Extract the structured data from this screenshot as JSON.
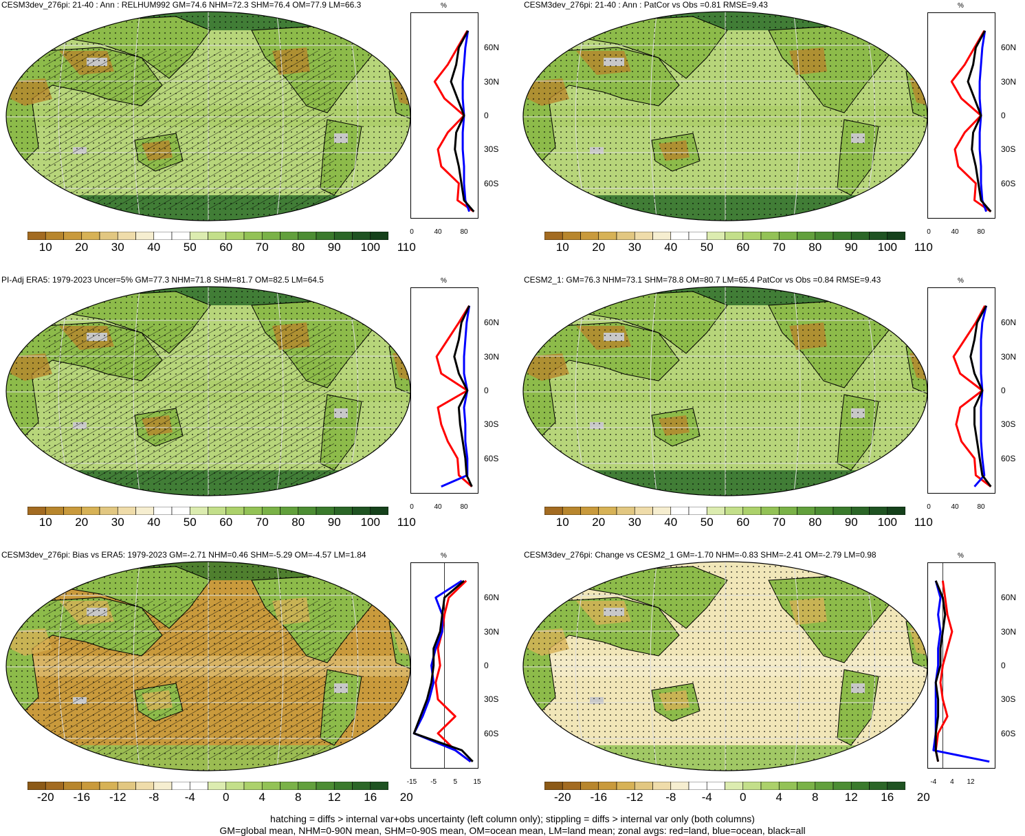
{
  "colors": {
    "land_dry": "#b6862c",
    "tan": "#e2c98a",
    "pale": "#f1e6b8",
    "green_light": "#b7d57a",
    "green_mid": "#8dbb4a",
    "green_dark": "#2d6d2a",
    "gray": "#c8c8c8",
    "line_red": "#ff0000",
    "line_blue": "#0000ff",
    "line_black": "#000000"
  },
  "panels": [
    {
      "title": "CESM3dev_276pi: 21-40 : Ann : RELHUM992 GM=74.6 NHM=72.3 SHM=76.4 OM=77.9 LM=66.3",
      "cbar_labels": [
        "10",
        "20",
        "30",
        "40",
        "50",
        "60",
        "70",
        "80",
        "90",
        "100",
        "110"
      ],
      "unit": "%",
      "lat_labels": [
        "60N",
        "30N",
        "0",
        "30S",
        "60S"
      ],
      "x_ticks": [
        "0",
        "40",
        "80"
      ],
      "hatched": true
    },
    {
      "title": "CESM3dev_276pi: 21-40 : Ann : PatCor vs Obs =0.81 RMSE=9.43",
      "cbar_labels": [
        "10",
        "20",
        "30",
        "40",
        "50",
        "60",
        "70",
        "80",
        "90",
        "100",
        "110"
      ],
      "unit": "%",
      "lat_labels": [
        "60N",
        "30N",
        "0",
        "30S",
        "60S"
      ],
      "x_ticks": [
        "0",
        "40",
        "80"
      ],
      "hatched": false
    },
    {
      "title": "PI-Adj ERA5: 1979-2023 Uncer=5% GM=77.3 NHM=71.8 SHM=81.7 OM=82.5 LM=64.5",
      "cbar_labels": [
        "10",
        "20",
        "30",
        "40",
        "50",
        "60",
        "70",
        "80",
        "90",
        "100",
        "110"
      ],
      "unit": "%",
      "lat_labels": [
        "60N",
        "30N",
        "0",
        "30S",
        "60S"
      ],
      "x_ticks": [
        "0",
        "40",
        "80"
      ],
      "hatched": true
    },
    {
      "title": "CESM2_1: GM=76.3 NHM=73.1 SHM=78.8 OM=80.7 LM=65.4 PatCor vs Obs =0.84 RMSE=9.43",
      "cbar_labels": [
        "10",
        "20",
        "30",
        "40",
        "50",
        "60",
        "70",
        "80",
        "90",
        "100",
        "110"
      ],
      "unit": "%",
      "lat_labels": [
        "60N",
        "30N",
        "0",
        "30S",
        "60S"
      ],
      "x_ticks": [
        "0",
        "40",
        "80"
      ],
      "hatched": false
    },
    {
      "title": "CESM3dev_276pi: Bias vs ERA5: 1979-2023 GM=-2.71 NHM=0.46 SHM=-5.29 OM=-4.57 LM=1.84",
      "cbar_labels": [
        "-20",
        "-16",
        "-12",
        "-8",
        "-4",
        "0",
        "4",
        "8",
        "12",
        "16",
        "20"
      ],
      "unit": "%",
      "lat_labels": [
        "60N",
        "30N",
        "0",
        "30S",
        "60S"
      ],
      "x_ticks": [
        "-15",
        "-5",
        "5",
        "15"
      ],
      "hatched": true
    },
    {
      "title": "CESM3dev_276pi: Change vs CESM2_1 GM=-1.70 NHM=-0.83 SHM=-2.41 OM=-2.79 LM=0.98",
      "cbar_labels": [
        "-20",
        "-16",
        "-12",
        "-8",
        "-4",
        "0",
        "4",
        "8",
        "12",
        "16",
        "20"
      ],
      "unit": "%",
      "lat_labels": [
        "60N",
        "30N",
        "0",
        "30S",
        "60S"
      ],
      "x_ticks": [
        "-4",
        "4",
        "12"
      ],
      "hatched": false
    }
  ],
  "footer": {
    "line1": "hatching = diffs > internal var+obs uncertainty (left column only); stippling = diffs > internal var only (both columns)",
    "line2": "GM=global mean, NHM=0-90N mean, SHM=0-90S mean, OM=ocean mean, LM=land mean; zonal avgs: red=land, blue=ocean, black=all"
  },
  "chart_data": [
    {
      "type": "line",
      "title": "CESM3dev_276pi: 21-40 : Ann : RELHUM992 GM=74.6 NHM=72.3 SHM=76.4 OM=77.9 LM=66.3",
      "xlabel": "%",
      "ylabel": "",
      "xlim": [
        0,
        100
      ],
      "ylim": [
        -90,
        90
      ],
      "y": [
        -85,
        -75,
        -60,
        -45,
        -30,
        -15,
        0,
        15,
        30,
        45,
        60,
        75
      ],
      "series": [
        {
          "values": [
            95,
            70,
            72,
            45,
            40,
            55,
            80,
            50,
            35,
            55,
            70,
            85
          ]
        },
        {
          "values": [
            88,
            82,
            80,
            80,
            78,
            78,
            80,
            78,
            78,
            80,
            82,
            86
          ]
        },
        {
          "values": [
            95,
            80,
            76,
            72,
            66,
            68,
            80,
            70,
            60,
            68,
            72,
            86
          ]
        }
      ]
    },
    {
      "type": "line",
      "title": "CESM3dev_276pi: 21-40 : Ann : PatCor vs Obs =0.81 RMSE=9.43",
      "xlabel": "%",
      "ylabel": "",
      "xlim": [
        0,
        100
      ],
      "ylim": [
        -90,
        90
      ],
      "y": [
        -85,
        -75,
        -60,
        -45,
        -30,
        -15,
        0,
        15,
        30,
        45,
        60,
        75
      ],
      "series": [
        {
          "values": [
            95,
            70,
            72,
            45,
            40,
            55,
            80,
            50,
            35,
            55,
            70,
            85
          ]
        },
        {
          "values": [
            88,
            82,
            80,
            80,
            78,
            78,
            80,
            78,
            78,
            80,
            82,
            86
          ]
        },
        {
          "values": [
            95,
            80,
            76,
            72,
            66,
            68,
            80,
            70,
            60,
            68,
            72,
            86
          ]
        }
      ]
    },
    {
      "type": "line",
      "title": "PI-Adj ERA5: 1979-2023 Uncer=5% GM=77.3 NHM=71.8 SHM=81.7 OM=82.5 LM=64.5",
      "xlabel": "%",
      "ylabel": "",
      "xlim": [
        0,
        100
      ],
      "ylim": [
        -90,
        90
      ],
      "y": [
        -85,
        -75,
        -60,
        -45,
        -30,
        -15,
        0,
        15,
        30,
        45,
        60,
        75
      ],
      "series": [
        {
          "values": [
            92,
            72,
            70,
            55,
            45,
            40,
            85,
            45,
            38,
            55,
            72,
            88
          ]
        },
        {
          "values": [
            45,
            85,
            85,
            82,
            82,
            80,
            85,
            80,
            80,
            82,
            84,
            88
          ]
        },
        {
          "values": [
            92,
            84,
            82,
            78,
            74,
            72,
            85,
            72,
            65,
            72,
            76,
            88
          ]
        }
      ]
    },
    {
      "type": "line",
      "title": "CESM2_1: GM=76.3 NHM=73.1 SHM=78.8 OM=80.7 LM=65.4 PatCor vs Obs =0.84 RMSE=9.43",
      "xlabel": "%",
      "ylabel": "",
      "xlim": [
        0,
        100
      ],
      "ylim": [
        -90,
        90
      ],
      "y": [
        -85,
        -75,
        -60,
        -45,
        -30,
        -15,
        0,
        15,
        30,
        45,
        60,
        75
      ],
      "series": [
        {
          "values": [
            95,
            72,
            70,
            50,
            42,
            48,
            82,
            48,
            38,
            55,
            72,
            86
          ]
        },
        {
          "values": [
            70,
            85,
            82,
            80,
            80,
            80,
            82,
            80,
            80,
            80,
            82,
            88
          ]
        },
        {
          "values": [
            95,
            82,
            78,
            74,
            70,
            70,
            82,
            70,
            64,
            70,
            74,
            88
          ]
        }
      ]
    },
    {
      "type": "line",
      "title": "CESM3dev_276pi: Bias vs ERA5: 1979-2023 GM=-2.71 NHM=0.46 SHM=-5.29 OM=-4.57 LM=1.84",
      "xlabel": "%",
      "ylabel": "",
      "xlim": [
        -15,
        15
      ],
      "ylim": [
        -90,
        90
      ],
      "y": [
        -85,
        -75,
        -60,
        -45,
        -30,
        -15,
        0,
        15,
        30,
        45,
        60,
        75
      ],
      "series": [
        {
          "values": [
            12,
            5,
            -3,
            5,
            -3,
            -4,
            -2,
            -3,
            -1,
            0,
            2,
            10
          ]
        },
        {
          "values": [
            12,
            5,
            -14,
            -10,
            -7,
            -5,
            -6,
            -4,
            -1,
            -1,
            -4,
            8
          ]
        },
        {
          "values": [
            13,
            8,
            -14,
            -11,
            -8,
            -6,
            -5,
            -5,
            -2,
            -1,
            0,
            9
          ]
        }
      ]
    },
    {
      "type": "line",
      "title": "CESM3dev_276pi: Change vs CESM2_1 GM=-1.70 NHM=-0.83 SHM=-2.41 OM=-2.79 LM=0.98",
      "xlabel": "%",
      "ylabel": "",
      "xlim": [
        -6,
        22
      ],
      "ylim": [
        -90,
        90
      ],
      "y": [
        -85,
        -75,
        -60,
        -45,
        -30,
        -15,
        0,
        15,
        30,
        45,
        60,
        75
      ],
      "series": [
        {
          "values": [
            -2,
            -3,
            -2,
            2,
            0,
            -1,
            0,
            2,
            4,
            2,
            1,
            0
          ]
        },
        {
          "values": [
            20,
            -4,
            -3,
            -3,
            -3,
            -3,
            -2,
            -2,
            -1,
            -2,
            -1,
            -3
          ]
        },
        {
          "values": [
            -2,
            -3,
            -3,
            -2,
            -2,
            -3,
            -1,
            -1,
            0,
            1,
            0,
            -3
          ]
        }
      ]
    }
  ]
}
